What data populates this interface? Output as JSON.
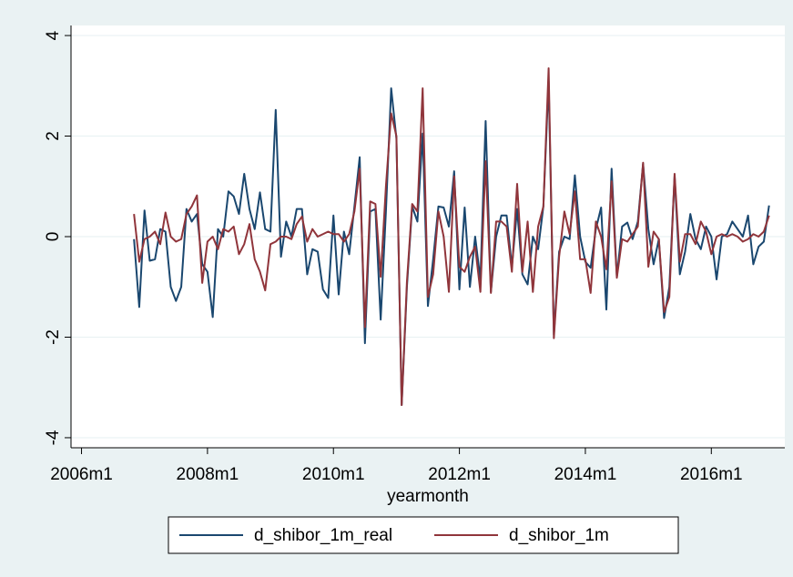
{
  "chart_data": {
    "type": "line",
    "xlabel": "yearmonth",
    "x": [
      "2006m11",
      "2006m12",
      "2007m1",
      "2007m2",
      "2007m3",
      "2007m4",
      "2007m5",
      "2007m6",
      "2007m7",
      "2007m8",
      "2007m9",
      "2007m10",
      "2007m11",
      "2007m12",
      "2008m1",
      "2008m2",
      "2008m3",
      "2008m4",
      "2008m5",
      "2008m6",
      "2008m7",
      "2008m8",
      "2008m9",
      "2008m10",
      "2008m11",
      "2008m12",
      "2009m1",
      "2009m2",
      "2009m3",
      "2009m4",
      "2009m5",
      "2009m6",
      "2009m7",
      "2009m8",
      "2009m9",
      "2009m10",
      "2009m11",
      "2009m12",
      "2010m1",
      "2010m2",
      "2010m3",
      "2010m4",
      "2010m5",
      "2010m6",
      "2010m7",
      "2010m8",
      "2010m9",
      "2010m10",
      "2010m11",
      "2010m12",
      "2011m1",
      "2011m2",
      "2011m3",
      "2011m4",
      "2011m5",
      "2011m6",
      "2011m7",
      "2011m8",
      "2011m9",
      "2011m10",
      "2011m11",
      "2011m12",
      "2012m1",
      "2012m2",
      "2012m3",
      "2012m4",
      "2012m5",
      "2012m6",
      "2012m7",
      "2012m8",
      "2012m9",
      "2012m10",
      "2012m11",
      "2012m12",
      "2013m1",
      "2013m2",
      "2013m3",
      "2013m4",
      "2013m5",
      "2013m6",
      "2013m7",
      "2013m8",
      "2013m9",
      "2013m10",
      "2013m11",
      "2013m12",
      "2014m1",
      "2014m2",
      "2014m3",
      "2014m4",
      "2014m5",
      "2014m6",
      "2014m7",
      "2014m8",
      "2014m9",
      "2014m10",
      "2014m11",
      "2014m12",
      "2015m1",
      "2015m2",
      "2015m3",
      "2015m4",
      "2015m5",
      "2015m6",
      "2015m7",
      "2015m8",
      "2015m9",
      "2015m10",
      "2015m11",
      "2015m12",
      "2016m1",
      "2016m2",
      "2016m3",
      "2016m4",
      "2016m5",
      "2016m6",
      "2016m7",
      "2016m8",
      "2016m9",
      "2016m10",
      "2016m11",
      "2016m12"
    ],
    "series": [
      {
        "name": "d_shibor_1m_real",
        "color": "#1a476f",
        "values": [
          -0.05,
          -1.4,
          0.52,
          -0.48,
          -0.45,
          0.15,
          0.1,
          -1.0,
          -1.28,
          -1.0,
          0.55,
          0.3,
          0.45,
          -0.55,
          -0.7,
          -1.6,
          0.15,
          0.0,
          0.9,
          0.8,
          0.45,
          1.25,
          0.55,
          0.15,
          0.88,
          0.15,
          0.1,
          2.52,
          -0.4,
          0.3,
          0.0,
          0.55,
          0.55,
          -0.75,
          -0.25,
          -0.3,
          -1.05,
          -1.22,
          0.42,
          -1.15,
          0.1,
          -0.35,
          0.6,
          1.58,
          -2.12,
          0.5,
          0.55,
          -1.65,
          0.5,
          2.95,
          1.95,
          -3.35,
          -1.0,
          0.6,
          0.3,
          2.05,
          -1.38,
          -0.45,
          0.6,
          0.58,
          0.2,
          1.3,
          -1.05,
          0.58,
          -1.0,
          0.0,
          -0.85,
          2.3,
          -1.1,
          0.0,
          0.42,
          0.42,
          -0.6,
          0.55,
          -0.75,
          -0.95,
          0.0,
          -0.25,
          0.6,
          3.1,
          -1.95,
          -0.3,
          0.0,
          -0.05,
          1.22,
          0.0,
          -0.5,
          -0.62,
          0.15,
          0.58,
          -1.45,
          1.35,
          -0.8,
          0.2,
          0.28,
          -0.05,
          0.3,
          1.45,
          0.15,
          -0.55,
          -0.05,
          -1.62,
          -1.0,
          1.2,
          -0.75,
          -0.3,
          0.45,
          -0.05,
          -0.25,
          0.2,
          0.0,
          -0.85,
          0.0,
          0.05,
          0.3,
          0.15,
          0.0,
          0.42,
          -0.55,
          -0.2,
          -0.1,
          0.62
        ]
      },
      {
        "name": "d_shibor_1m",
        "color": "#90353b",
        "values": [
          0.45,
          -0.5,
          -0.05,
          0.0,
          0.1,
          -0.15,
          0.48,
          0.0,
          -0.1,
          -0.05,
          0.45,
          0.6,
          0.82,
          -0.92,
          -0.1,
          0.0,
          -0.25,
          0.15,
          0.1,
          0.2,
          -0.35,
          -0.15,
          0.25,
          -0.45,
          -0.7,
          -1.07,
          -0.15,
          -0.1,
          0.0,
          0.0,
          -0.05,
          0.25,
          0.4,
          -0.1,
          0.15,
          0.0,
          0.05,
          0.1,
          0.05,
          0.05,
          -0.1,
          0.05,
          0.5,
          1.35,
          -1.8,
          0.7,
          0.65,
          -0.8,
          1.0,
          2.45,
          2.0,
          -3.35,
          -0.9,
          0.65,
          0.5,
          2.95,
          -1.2,
          -0.75,
          0.5,
          0.0,
          -1.1,
          1.2,
          -0.6,
          -0.7,
          -0.4,
          -0.2,
          -1.1,
          1.5,
          -1.12,
          0.3,
          0.3,
          0.2,
          -0.7,
          1.05,
          -0.7,
          0.3,
          -1.1,
          0.2,
          0.6,
          3.35,
          -2.02,
          -0.4,
          0.5,
          0.05,
          0.9,
          -0.45,
          -0.45,
          -1.12,
          0.3,
          0.0,
          -0.65,
          1.1,
          -0.82,
          -0.05,
          -0.1,
          0.05,
          0.2,
          1.47,
          -0.6,
          0.1,
          -0.05,
          -1.5,
          -1.2,
          1.25,
          -0.5,
          0.05,
          0.05,
          -0.15,
          0.3,
          0.1,
          -0.35,
          0.0,
          0.05,
          0.0,
          0.05,
          0.0,
          -0.1,
          -0.05,
          0.05,
          0.0,
          0.1,
          0.42
        ]
      }
    ],
    "xlim": [
      "2005m11",
      "2017m3"
    ],
    "xticks": [
      "2006m1",
      "2008m1",
      "2010m1",
      "2012m1",
      "2014m1",
      "2016m1"
    ],
    "ylim": [
      -4.2,
      4.2
    ],
    "yticks": [
      -4,
      -2,
      0,
      2,
      4
    ],
    "grid": true,
    "legend": "bottom"
  }
}
